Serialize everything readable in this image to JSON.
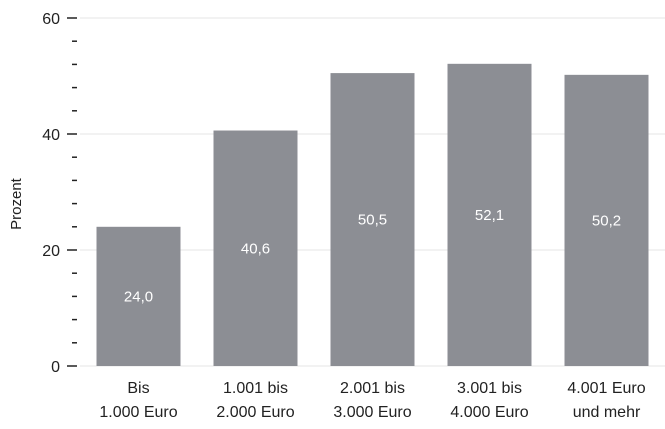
{
  "chart_data": {
    "type": "bar",
    "categories": [
      [
        "Bis",
        "1.000 Euro"
      ],
      [
        "1.001 bis",
        "2.000 Euro"
      ],
      [
        "2.001 bis",
        "3.000 Euro"
      ],
      [
        "3.001 bis",
        "4.000 Euro"
      ],
      [
        "4.001 Euro",
        "und mehr"
      ]
    ],
    "values": [
      24.0,
      40.6,
      50.5,
      52.1,
      50.2
    ],
    "value_labels": [
      "24,0",
      "40,6",
      "50,5",
      "52,1",
      "50,2"
    ],
    "ylabel": "Prozent",
    "ylim": [
      0,
      60
    ],
    "yticks": [
      0,
      20,
      40,
      60
    ],
    "grid": true,
    "bar_color": "#8c8e94",
    "grid_color": "#e6e6e6",
    "label_color": "#ffffff"
  }
}
